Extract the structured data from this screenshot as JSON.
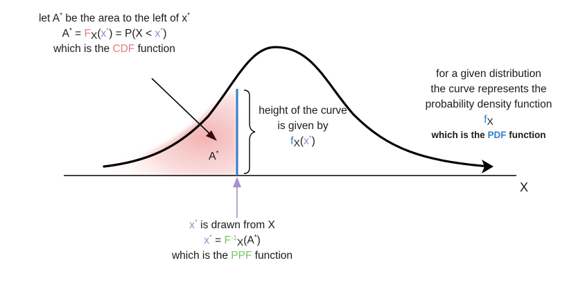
{
  "cdf_note": {
    "line1_text": "let A",
    "line1_star": "*",
    "line1_mid": " be the area to the left of x",
    "line1_star2": "*",
    "line2_a": "A",
    "line2_a_star": "*",
    "line2_eq": " = ",
    "line2_F": "F",
    "line2_sub": "X",
    "line2_open": "(",
    "line2_x": "x",
    "line2_x_star": "*",
    "line2_close": ") = P(X < ",
    "line2_x2": "x",
    "line2_x2_star": "*",
    "line2_end": ")",
    "line3_pre": "which is the ",
    "line3_key": "CDF",
    "line3_post": " function"
  },
  "pdf_note": {
    "line1": "for a given distribution",
    "line2": "the curve represents the",
    "line3": "probability density function",
    "line4_f": "f",
    "line4_sub": "X",
    "line5_pre": "which is the ",
    "line5_key": "PDF",
    "line5_post": " function"
  },
  "height_note": {
    "line1": "height of the curve",
    "line2": "is given by",
    "line3_f": "f",
    "line3_sub": "X",
    "line3_open": "(",
    "line3_x": "x",
    "line3_x_star": "*",
    "line3_close": ")"
  },
  "ppf_note": {
    "line1_x": "x",
    "line1_x_star": "*",
    "line1_post": " is drawn from X",
    "line2_x": "x",
    "line2_x_star": "*",
    "line2_eq": " = ",
    "line2_F": "F",
    "line2_inv": "-1",
    "line2_sub": "X",
    "line2_post": "(A",
    "line2_a_star": "*",
    "line2_end": ")",
    "line3_pre": "which is the ",
    "line3_key": "PPF",
    "line3_post": " function"
  },
  "area_label": {
    "text": "A",
    "star": "*"
  },
  "axis": {
    "x_label": "X"
  },
  "colors": {
    "cdf": "#e87b7b",
    "pdf": "#2e7ec8",
    "ppf": "#7ac36a",
    "x_star": "#9b86c8",
    "shading": "#f2b3b3",
    "ppf_arrow": "#a98fcf",
    "curve": "#000000"
  }
}
